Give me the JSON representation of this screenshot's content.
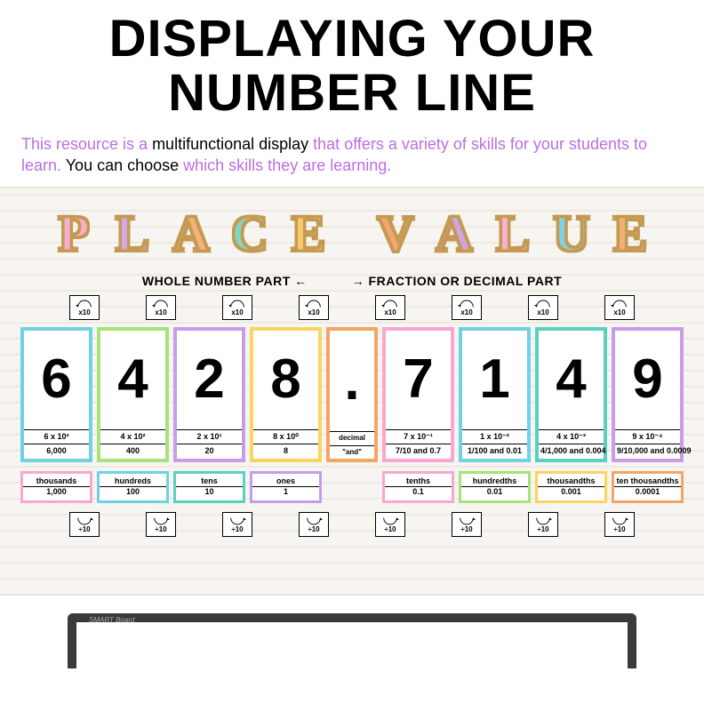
{
  "title_line1": "DISPLAYING YOUR",
  "title_line2": "NUMBER LINE",
  "subtitle": {
    "p1": "This resource is a ",
    "b1": "multifunctional display ",
    "p2": "that offers a variety of skills for your students to learn. ",
    "b2": "You can choose ",
    "p3": "which skills they are learning."
  },
  "place_value_letters": [
    {
      "ch": "P",
      "color": "#f6afcf"
    },
    {
      "ch": "L",
      "color": "#d4a6ea"
    },
    {
      "ch": "A",
      "color": "#f4b37a"
    },
    {
      "ch": "C",
      "color": "#7fd6c8"
    },
    {
      "ch": "E",
      "color": "#f9c96d"
    },
    {
      "ch": "V",
      "color": "#f3a574"
    },
    {
      "ch": "A",
      "color": "#d0a4e8"
    },
    {
      "ch": "L",
      "color": "#f7b2d1"
    },
    {
      "ch": "U",
      "color": "#7fd3e5"
    },
    {
      "ch": "E",
      "color": "#f4b072"
    }
  ],
  "left_label": "WHOLE NUMBER PART ←",
  "right_label": "→ FRACTION OR DECIMAL PART",
  "times_label": "x10",
  "div_label": "÷10",
  "cards": [
    {
      "digit": "6",
      "exp": "6 x 10³",
      "val": "6,000",
      "border": "#6fd1e1"
    },
    {
      "digit": "4",
      "exp": "4 x 10²",
      "val": "400",
      "border": "#a7e27a"
    },
    {
      "digit": "2",
      "exp": "2 x 10¹",
      "val": "20",
      "border": "#c79de8"
    },
    {
      "digit": "8",
      "exp": "8 x 10⁰",
      "val": "8",
      "border": "#f9d560"
    },
    {
      "digit": ".",
      "exp": "decimal",
      "val": "\"and\"",
      "border": "#f3a565",
      "dot": true
    },
    {
      "digit": "7",
      "exp": "7 x 10⁻¹",
      "val": "7/10 and 0.7",
      "border": "#f6a8cf"
    },
    {
      "digit": "1",
      "exp": "1 x 10⁻²",
      "val": "1/100 and 0.01",
      "border": "#6fd1e1"
    },
    {
      "digit": "4",
      "exp": "4 x 10⁻³",
      "val": "4/1,000 and 0.004",
      "border": "#5ad1c0"
    },
    {
      "digit": "9",
      "exp": "9 x 10⁻⁴",
      "val": "9/10,000 and 0.0009",
      "border": "#c79de8"
    }
  ],
  "places": [
    {
      "name": "thousands",
      "val": "1,000",
      "border": "#f6a8cf"
    },
    {
      "name": "hundreds",
      "val": "100",
      "border": "#6fd1e1"
    },
    {
      "name": "tens",
      "val": "10",
      "border": "#5ad1c0"
    },
    {
      "name": "ones",
      "val": "1",
      "border": "#c79de8"
    },
    {
      "spacer": true
    },
    {
      "name": "tenths",
      "val": "0.1",
      "border": "#f6a8cf"
    },
    {
      "name": "hundredths",
      "val": "0.01",
      "border": "#a7e27a"
    },
    {
      "name": "thousandths",
      "val": "0.001",
      "border": "#f9d560"
    },
    {
      "name": "ten thousandths",
      "val": "0.0001",
      "border": "#f3a565"
    }
  ],
  "smartboard_label": "SMART Board"
}
